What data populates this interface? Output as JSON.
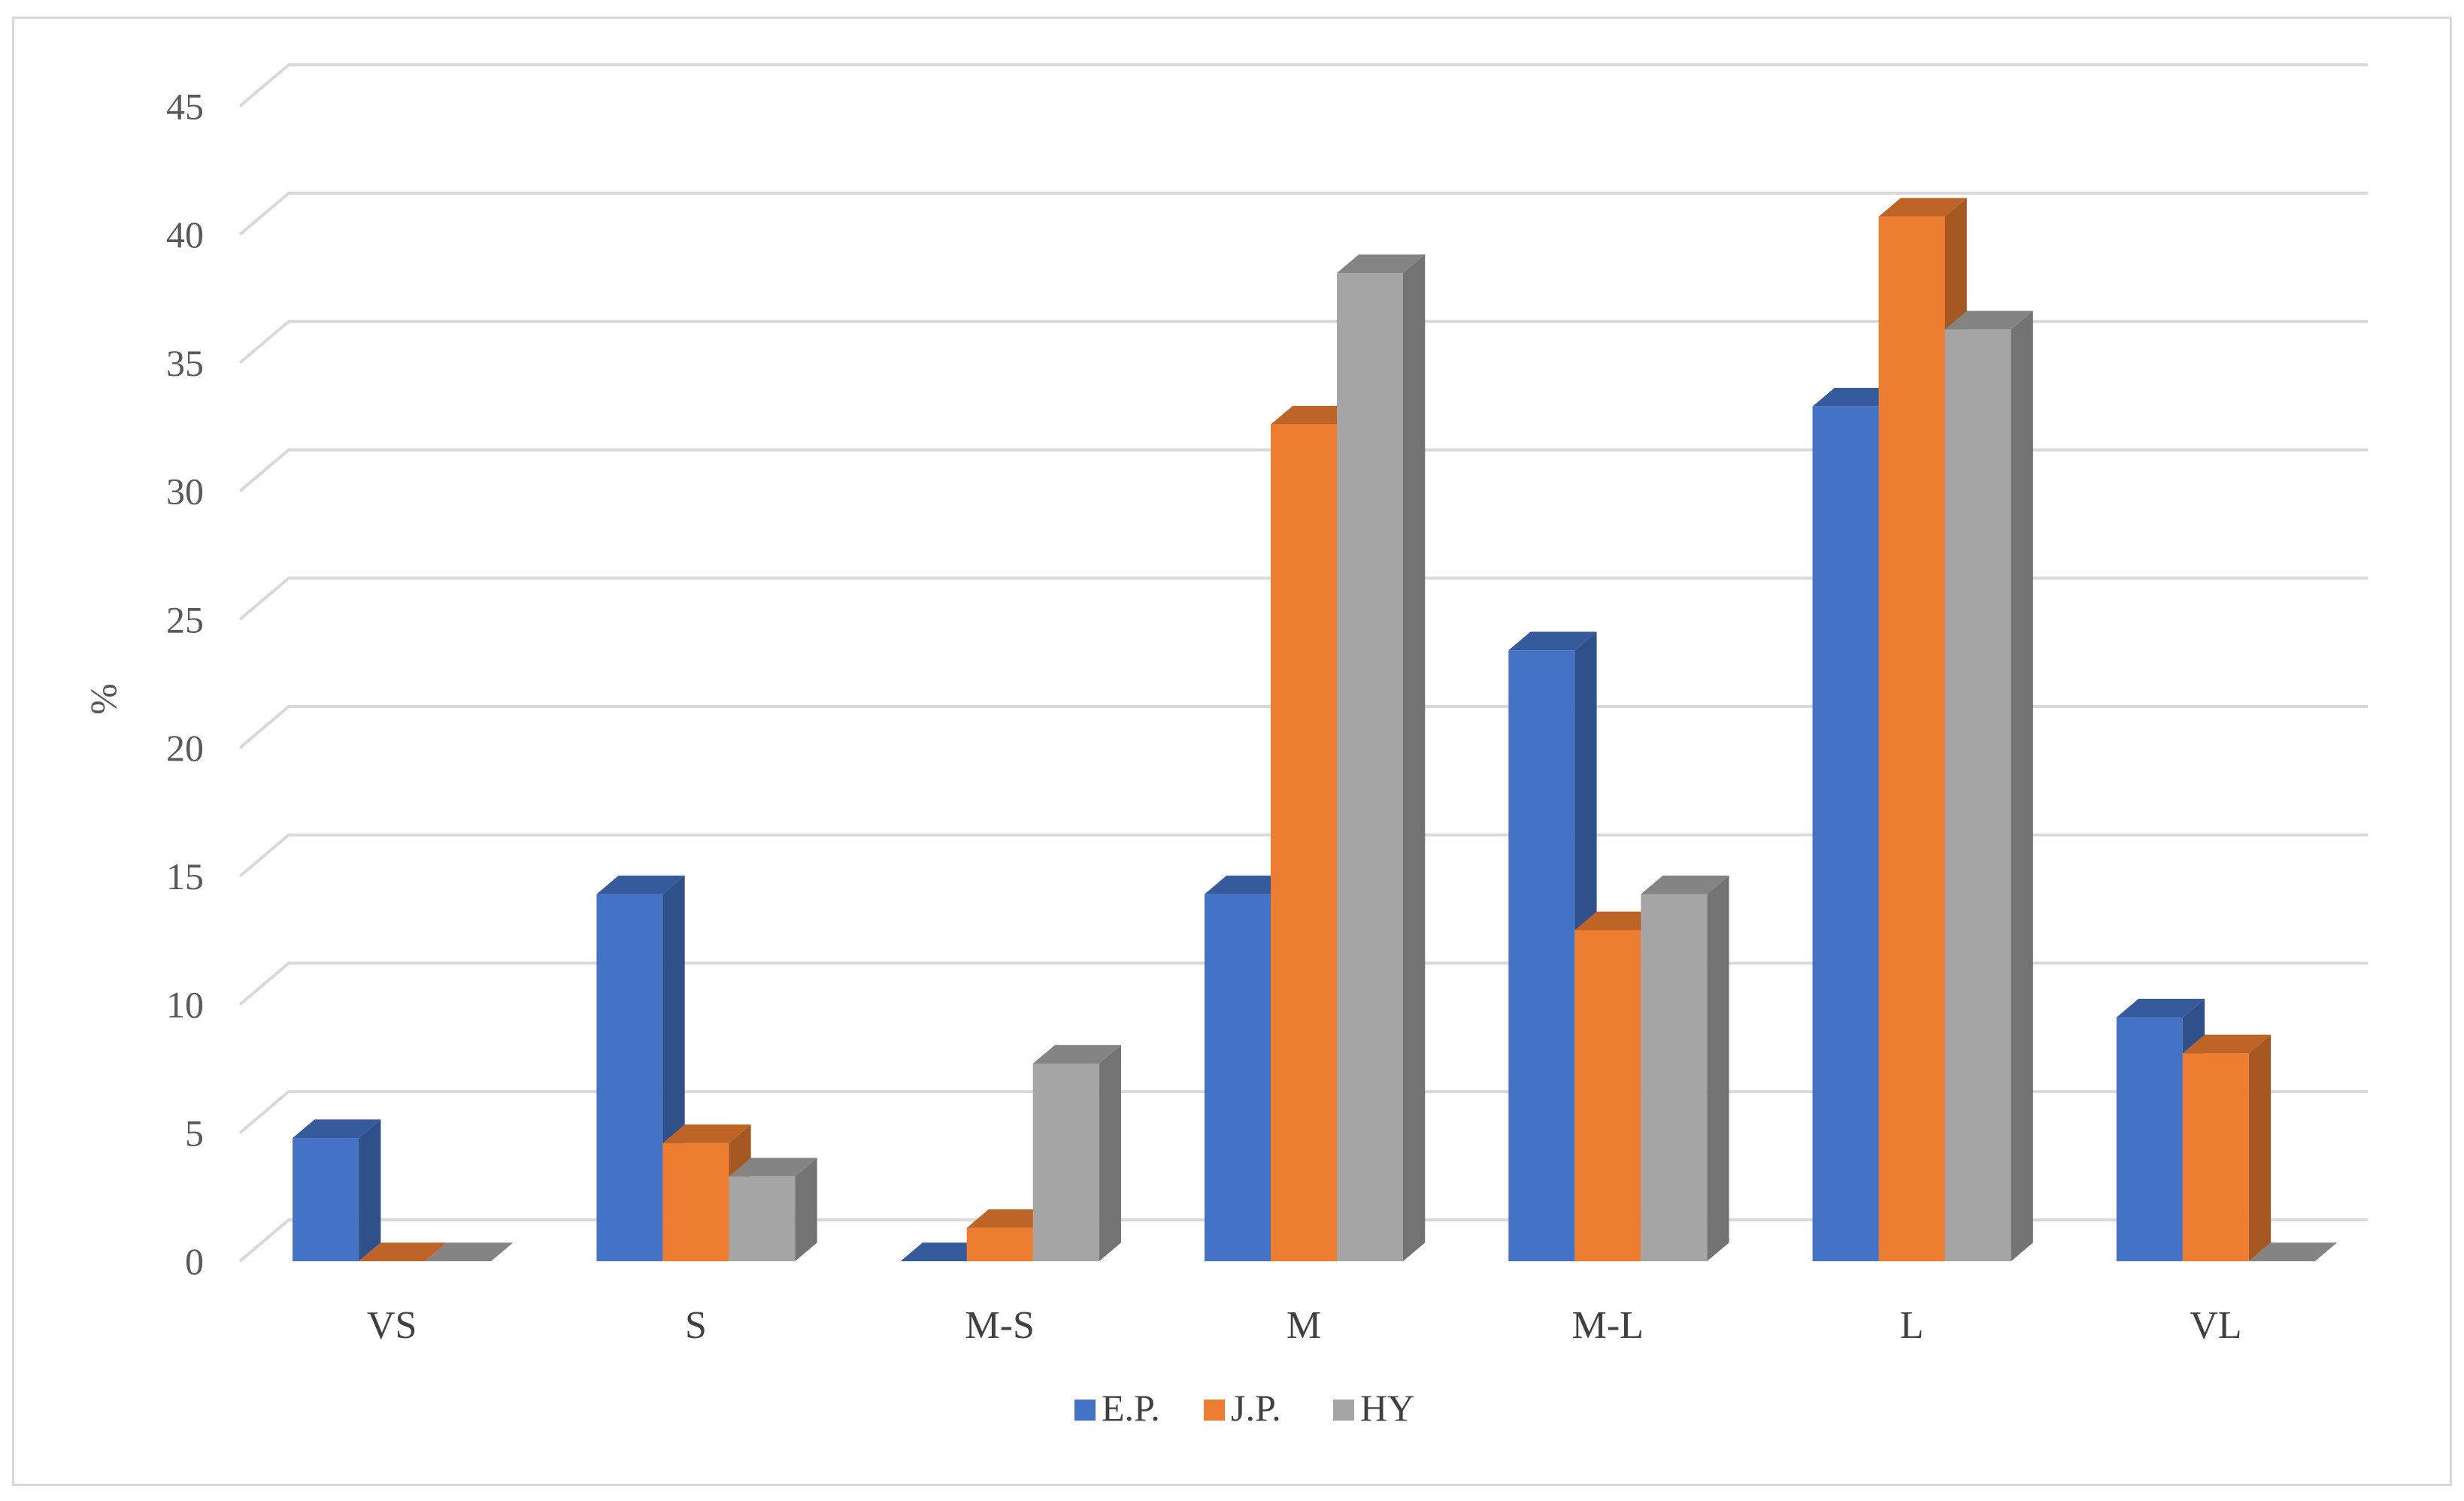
{
  "chart_data": {
    "type": "bar",
    "style": "3d-clustered-column",
    "title": "",
    "xlabel": "",
    "ylabel": "%",
    "ylim": [
      0,
      45
    ],
    "yticks": [
      0,
      5,
      10,
      15,
      20,
      25,
      30,
      35,
      40,
      45
    ],
    "grid": true,
    "legend_position": "bottom",
    "categories": [
      "VS",
      "S",
      "M-S",
      "M",
      "M-L",
      "L",
      "VL"
    ],
    "series": [
      {
        "name": "E.P.",
        "color": "#4472c4",
        "values": [
          4.8,
          14.3,
          0,
          14.3,
          23.8,
          33.3,
          9.5
        ]
      },
      {
        "name": "J.P.",
        "color": "#ed7d31",
        "values": [
          0,
          4.6,
          1.3,
          32.6,
          12.9,
          40.7,
          8.1
        ]
      },
      {
        "name": "HY",
        "color": "#a5a5a5",
        "values": [
          0,
          3.3,
          7.7,
          38.5,
          14.3,
          36.3,
          0
        ]
      }
    ]
  }
}
